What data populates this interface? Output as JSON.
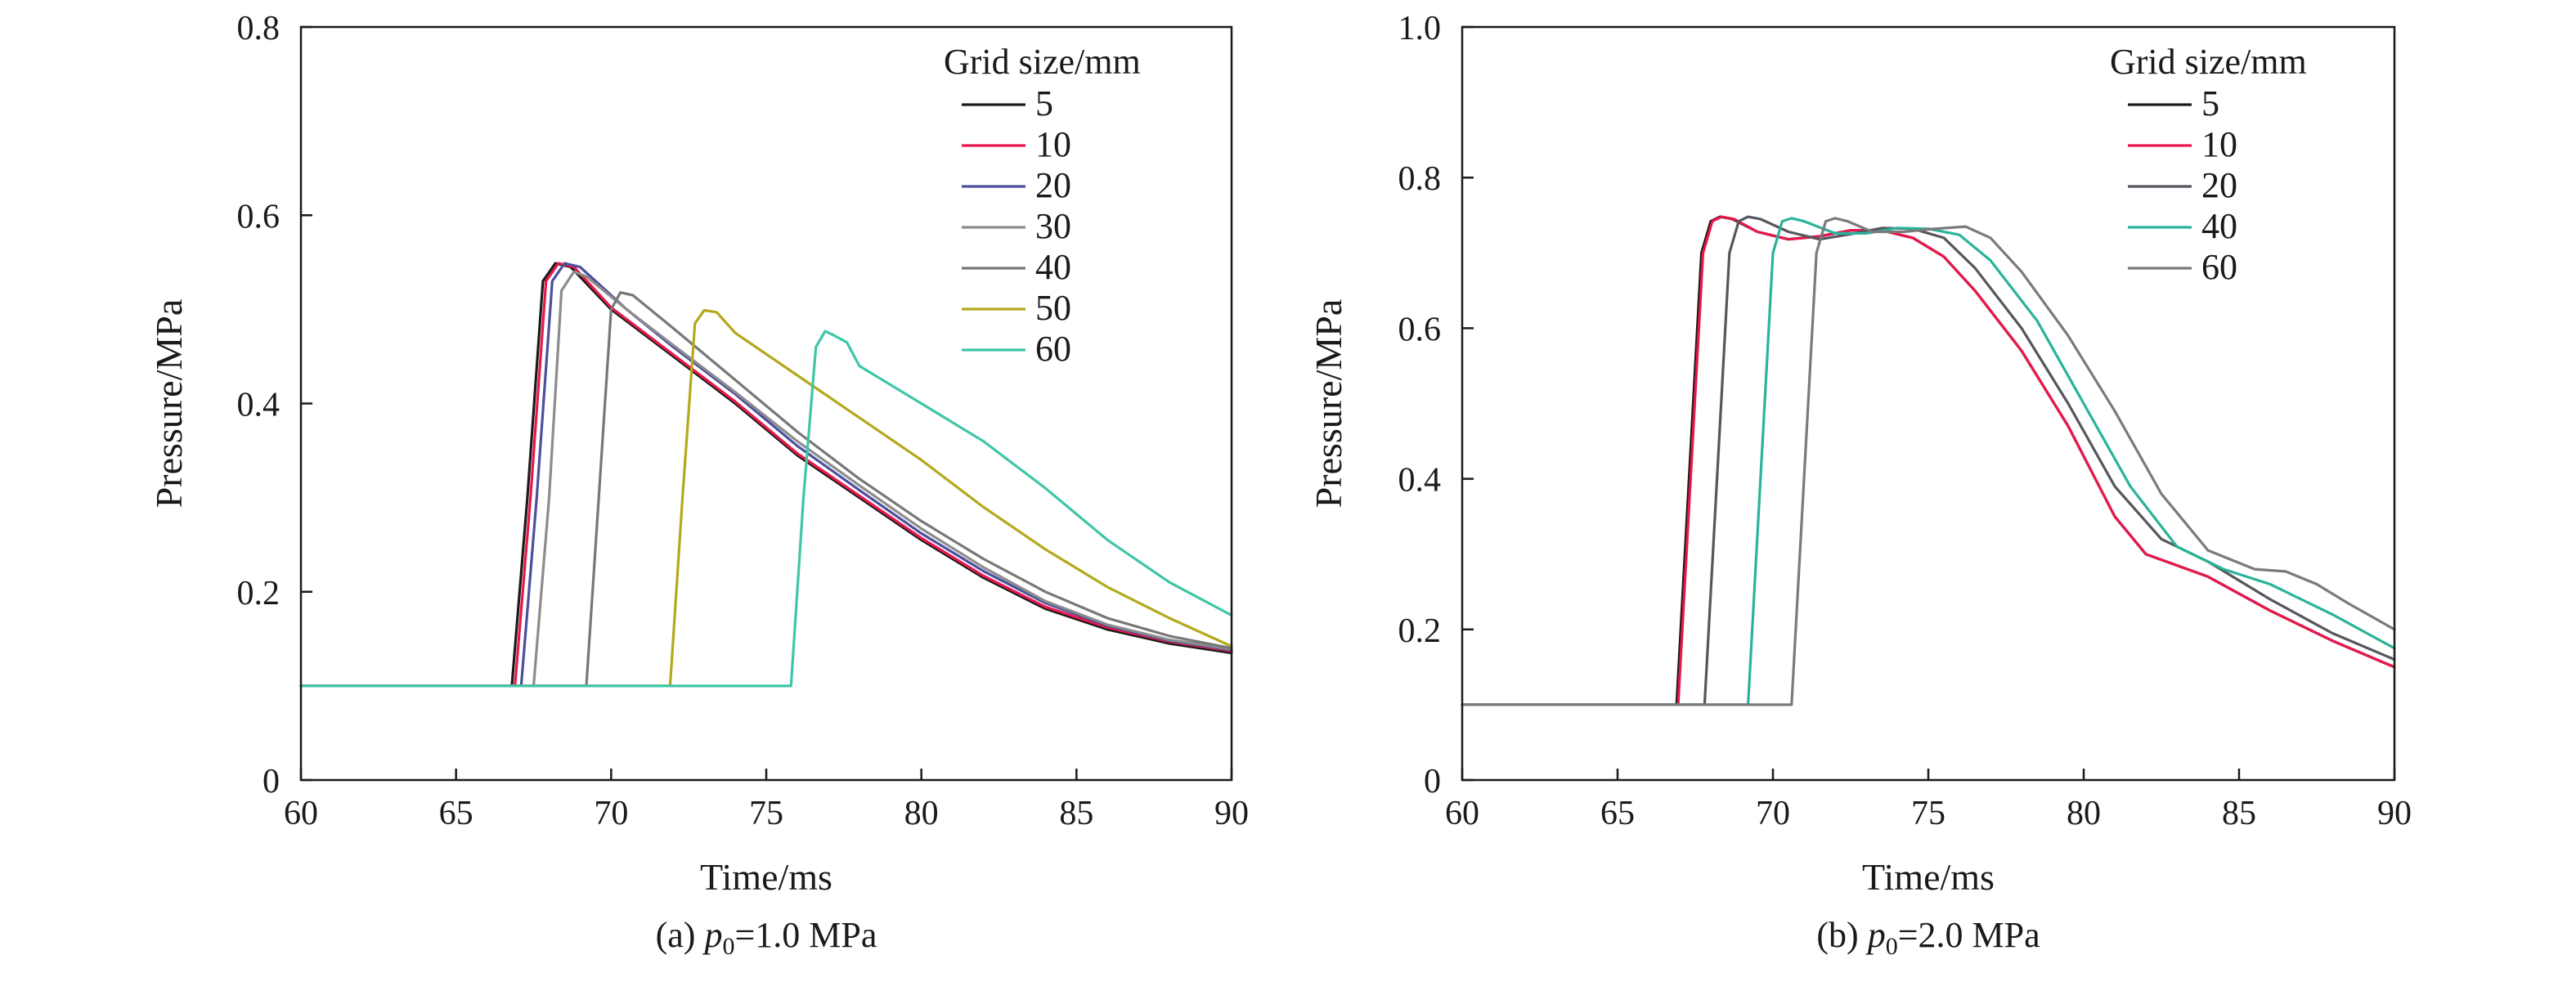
{
  "colors": {
    "s5": "#1a1a1a",
    "s10": "#e8174c",
    "s20": "#4b4f9e",
    "s30": "#8c8c8c",
    "s40": "#777777",
    "s50": "#b4a81c",
    "s60": "#3ec6a8",
    "b20": "#55565e",
    "b40": "#2ab39a",
    "b60": "#7a7a7a"
  },
  "chart_data": [
    {
      "type": "line",
      "caption": "(a) p0=1.0 MPa",
      "caption_parts": {
        "prefix": "(a) ",
        "var": "p",
        "sub": "0",
        "suffix": "=1.0 MPa"
      },
      "xlabel": "Time/ms",
      "ylabel": "Pressure/MPa",
      "xlim": [
        60,
        90
      ],
      "ylim": [
        0,
        0.8
      ],
      "xticks": [
        60,
        65,
        70,
        75,
        80,
        85,
        90
      ],
      "xtick_labels": [
        "60",
        "65",
        "70",
        "75",
        "80",
        "85",
        "90"
      ],
      "yticks": [
        0,
        0.2,
        0.4,
        0.6,
        0.8
      ],
      "ytick_labels": [
        "0",
        "0.2",
        "0.4",
        "0.6",
        "0.8"
      ],
      "legend_title": "Grid size/mm",
      "legend_position": "top-right",
      "series": [
        {
          "name": "5",
          "color_key": "s5",
          "x": [
            60,
            66.8,
            67.3,
            67.8,
            68.2,
            68.7,
            70,
            72,
            74,
            76,
            78,
            80,
            82,
            84,
            86,
            88,
            90
          ],
          "y": [
            0.1,
            0.1,
            0.3,
            0.53,
            0.549,
            0.545,
            0.5,
            0.45,
            0.4,
            0.345,
            0.3,
            0.255,
            0.215,
            0.182,
            0.16,
            0.145,
            0.135
          ]
        },
        {
          "name": "10",
          "color_key": "s10",
          "x": [
            60,
            66.9,
            67.4,
            67.9,
            68.3,
            68.8,
            70,
            72,
            74,
            76,
            78,
            80,
            82,
            84,
            86,
            88,
            90
          ],
          "y": [
            0.1,
            0.1,
            0.3,
            0.53,
            0.549,
            0.545,
            0.502,
            0.452,
            0.402,
            0.347,
            0.302,
            0.257,
            0.217,
            0.184,
            0.162,
            0.147,
            0.137
          ]
        },
        {
          "name": "20",
          "color_key": "s20",
          "x": [
            60,
            67.1,
            67.6,
            68.1,
            68.5,
            69,
            70.5,
            72,
            74,
            76,
            78,
            80,
            82,
            84,
            86,
            88,
            90
          ],
          "y": [
            0.1,
            0.1,
            0.3,
            0.53,
            0.549,
            0.545,
            0.5,
            0.46,
            0.41,
            0.355,
            0.308,
            0.262,
            0.222,
            0.188,
            0.164,
            0.148,
            0.138
          ]
        },
        {
          "name": "30",
          "color_key": "s30",
          "x": [
            60,
            67.5,
            68,
            68.4,
            68.8,
            69.2,
            70.5,
            72,
            74,
            76,
            78,
            80,
            82,
            84,
            86,
            88,
            90
          ],
          "y": [
            0.1,
            0.1,
            0.3,
            0.52,
            0.54,
            0.535,
            0.5,
            0.462,
            0.412,
            0.36,
            0.313,
            0.267,
            0.226,
            0.19,
            0.165,
            0.149,
            0.139
          ]
        },
        {
          "name": "40",
          "color_key": "s40",
          "x": [
            60,
            69.2,
            69.6,
            70,
            70.3,
            70.7,
            72,
            74,
            76,
            78,
            80,
            82,
            84,
            86,
            88,
            90
          ],
          "y": [
            0.1,
            0.1,
            0.3,
            0.5,
            0.518,
            0.515,
            0.48,
            0.425,
            0.37,
            0.32,
            0.275,
            0.235,
            0.2,
            0.172,
            0.153,
            0.14
          ]
        },
        {
          "name": "50",
          "color_key": "s50",
          "x": [
            60,
            71.9,
            72.3,
            72.7,
            73,
            73.4,
            74,
            76,
            78,
            80,
            82,
            84,
            86,
            88,
            90
          ],
          "y": [
            0.1,
            0.1,
            0.3,
            0.485,
            0.499,
            0.497,
            0.475,
            0.43,
            0.385,
            0.34,
            0.29,
            0.245,
            0.205,
            0.172,
            0.142
          ]
        },
        {
          "name": "60",
          "color_key": "s60",
          "x": [
            60,
            75.8,
            76.2,
            76.6,
            76.9,
            77.2,
            77.6,
            78,
            80,
            82,
            84,
            86,
            88,
            90
          ],
          "y": [
            0.1,
            0.1,
            0.3,
            0.46,
            0.477,
            0.472,
            0.465,
            0.44,
            0.4,
            0.36,
            0.31,
            0.255,
            0.21,
            0.175
          ]
        }
      ]
    },
    {
      "type": "line",
      "caption": "(b) p0=2.0 MPa",
      "caption_parts": {
        "prefix": "(b) ",
        "var": "p",
        "sub": "0",
        "suffix": "=2.0 MPa"
      },
      "xlabel": "Time/ms",
      "ylabel": "Pressure/MPa",
      "xlim": [
        60,
        90
      ],
      "ylim": [
        0,
        1.0
      ],
      "xticks": [
        60,
        65,
        70,
        75,
        80,
        85,
        90
      ],
      "xtick_labels": [
        "60",
        "65",
        "70",
        "75",
        "80",
        "85",
        "90"
      ],
      "yticks": [
        0,
        0.2,
        0.4,
        0.6,
        0.8,
        1.0
      ],
      "ytick_labels": [
        "0",
        "0.2",
        "0.4",
        "0.6",
        "0.8",
        "1.0"
      ],
      "legend_title": "Grid size/mm",
      "legend_position": "top-right",
      "series": [
        {
          "name": "5",
          "color_key": "s5",
          "x": [
            60,
            66.9,
            67.3,
            67.7,
            68,
            68.3,
            68.7,
            69.5,
            70.5,
            71.5,
            72.5,
            73.5,
            74.5,
            75.5,
            76.5,
            78,
            79.5,
            81,
            82,
            83,
            84,
            86,
            88,
            90
          ],
          "y": [
            0.1,
            0.1,
            0.4,
            0.7,
            0.742,
            0.748,
            0.745,
            0.728,
            0.718,
            0.722,
            0.73,
            0.73,
            0.72,
            0.695,
            0.65,
            0.57,
            0.47,
            0.35,
            0.3,
            0.285,
            0.27,
            0.225,
            0.185,
            0.15
          ]
        },
        {
          "name": "10",
          "color_key": "s10",
          "x": [
            60,
            66.95,
            67.35,
            67.75,
            68.05,
            68.35,
            68.75,
            69.5,
            70.5,
            71.5,
            72.5,
            73.5,
            74.5,
            75.5,
            76.5,
            78,
            79.5,
            81,
            82,
            83,
            84,
            86,
            88,
            90
          ],
          "y": [
            0.1,
            0.1,
            0.4,
            0.7,
            0.742,
            0.748,
            0.745,
            0.728,
            0.718,
            0.722,
            0.73,
            0.73,
            0.72,
            0.695,
            0.65,
            0.57,
            0.47,
            0.35,
            0.3,
            0.285,
            0.27,
            0.225,
            0.185,
            0.15
          ]
        },
        {
          "name": "20",
          "color_key": "b20",
          "x": [
            60,
            67.8,
            68.2,
            68.6,
            68.9,
            69.2,
            69.6,
            70.5,
            71.5,
            72.5,
            73.5,
            74.5,
            75.5,
            76.5,
            78,
            79.5,
            81,
            82.5,
            84,
            86,
            88,
            90
          ],
          "y": [
            0.1,
            0.1,
            0.4,
            0.7,
            0.742,
            0.748,
            0.745,
            0.728,
            0.718,
            0.725,
            0.733,
            0.732,
            0.72,
            0.68,
            0.6,
            0.5,
            0.39,
            0.32,
            0.29,
            0.24,
            0.195,
            0.16
          ]
        },
        {
          "name": "40",
          "color_key": "b40",
          "x": [
            60,
            69.2,
            69.6,
            70,
            70.3,
            70.6,
            71,
            72,
            73,
            74,
            75,
            76,
            77,
            78.5,
            80,
            81.5,
            83,
            84.5,
            86,
            88,
            90
          ],
          "y": [
            0.1,
            0.1,
            0.4,
            0.7,
            0.742,
            0.746,
            0.742,
            0.726,
            0.726,
            0.733,
            0.732,
            0.724,
            0.69,
            0.61,
            0.5,
            0.39,
            0.31,
            0.28,
            0.26,
            0.22,
            0.175
          ]
        },
        {
          "name": "60",
          "color_key": "b60",
          "x": [
            60,
            70.6,
            71,
            71.4,
            71.7,
            72,
            72.4,
            73.2,
            74.2,
            75.2,
            76.2,
            77,
            78,
            79.5,
            81,
            82.5,
            84,
            85.5,
            86.5,
            87.5,
            88.5,
            90
          ],
          "y": [
            0.1,
            0.1,
            0.4,
            0.7,
            0.742,
            0.746,
            0.742,
            0.728,
            0.728,
            0.732,
            0.735,
            0.72,
            0.675,
            0.59,
            0.49,
            0.38,
            0.305,
            0.28,
            0.277,
            0.26,
            0.235,
            0.2
          ]
        }
      ]
    }
  ]
}
